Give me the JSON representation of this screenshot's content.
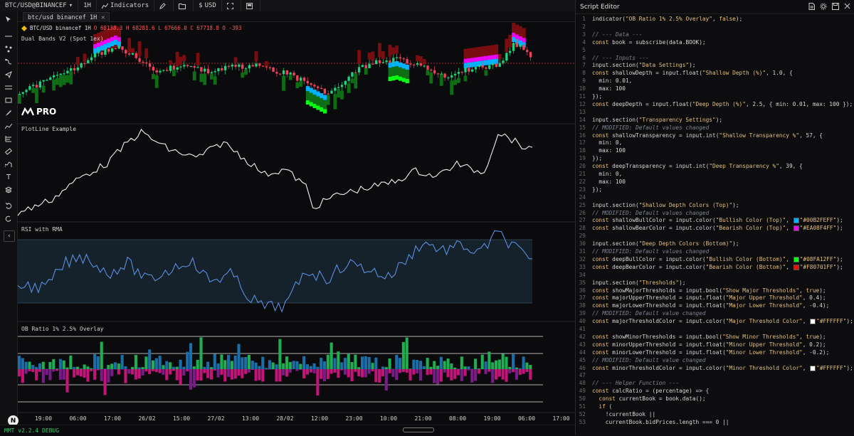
{
  "toolbar": {
    "symbol": "BTC/USD@BINANCEF",
    "interval": "1H",
    "indicators_label": "Indicators",
    "currency": "USD"
  },
  "tab": {
    "label": "btc/usd binancef 1H"
  },
  "legend": {
    "symbol": "BTC/USD binancef 1H",
    "ohlc": "O 68138.3  H 68281.6  L 67666.0  C 67718.8  O -393"
  },
  "panes": {
    "main_label": "Dual Bands V2 (Spot 1ex)",
    "plotline_label": "PlotLine Example",
    "rsi_label": "RSI with RMA",
    "ob_label": "OB Ratio 1% 2.5% Overlay"
  },
  "brand": {
    "pro_label": "PRO",
    "n_logo": "N"
  },
  "time_axis": [
    "19:00",
    "06:00",
    "17:00",
    "26/02",
    "15:00",
    "27/02",
    "13:00",
    "28/02",
    "12:00",
    "23:00",
    "10:00",
    "21:00",
    "08:00",
    "19:00",
    "06:00",
    "17:00"
  ],
  "version": "MMT v2.2.4 DEBUG",
  "editor": {
    "title": "Script Editor",
    "lines": [
      "indicator(\"OB Ratio 1% 2.5% Overlay\", false);",
      "",
      "// --- Data ---",
      "const book = subscribe(data.BOOK);",
      "",
      "// --- Inputs ---",
      "input.section(\"Data Settings\");",
      "const shallowDepth = input.float(\"Shallow Depth (%)\", 1.0, {",
      "  min: 0.01,",
      "  max: 100",
      "});",
      "const deepDepth = input.float(\"Deep Depth (%)\", 2.5, { min: 0.01, max: 100 });",
      "",
      "input.section(\"Transparency Settings\");",
      "// MODIFIED: Default values changed",
      "const shallowTransparency = input.int(\"Shallow Transparency %\", 57, {",
      "  min: 0,",
      "  max: 100",
      "});",
      "const deepTransparency = input.int(\"Deep Transparency %\", 39, {",
      "  min: 0,",
      "  max: 100",
      "});",
      "",
      "input.section(\"Shallow Depth Colors (Top)\");",
      "// MODIFIED: Default values changed",
      "const shallowBullColor = input.color(\"Bullish Color (Top)\", \"#00B2FEFF\");",
      "const shallowBearColor = input.color(\"Bearish Color (Top)\", \"#EA08F4FF\");",
      "",
      "input.section(\"Deep Depth Colors (Bottom)\");",
      "// MODIFIED: Default values changed",
      "const deepBullColor = input.color(\"Bullish Color (Bottom)\", \"#08FA12FF\");",
      "const deepBearColor = input.color(\"Bearish Color (Bottom)\", \"#F80701FF\");",
      "",
      "input.section(\"Thresholds\");",
      "const showMajorThresholds = input.bool(\"Show Major Thresholds\", true);",
      "const majorUpperThreshold = input.float(\"Major Upper Threshold\", 0.4);",
      "const majorLowerThreshold = input.float(\"Major Lower Threshold\", -0.4);",
      "// MODIFIED: Default value changed",
      "const majorThresholdColor = input.color(\"Major Threshold Color\", \"#FFFFFF\");",
      "",
      "const showMinorThresholds = input.bool(\"Show Minor Thresholds\", true);",
      "const minorUpperThreshold = input.float(\"Minor Upper Threshold\", 0.2);",
      "const minorLowerThreshold = input.float(\"Minor Lower Threshold\", -0.2);",
      "// MODIFIED: Default value changed",
      "const minorThresholdColor = input.color(\"Minor Threshold Color\", \"#FFFFFF\");",
      "",
      "// --- Helper Function ---",
      "const calcRatio = (percentage) => {",
      "  const currentBook = book.data();",
      "  if (",
      "    !currentBook ||",
      "    currentBook.bidPrices.length === 0 ||"
    ]
  },
  "colors": {
    "shallow_bull": "#00B2FE",
    "shallow_bear": "#EA08F4",
    "deep_bull": "#08FA12",
    "deep_bear": "#F80701"
  }
}
